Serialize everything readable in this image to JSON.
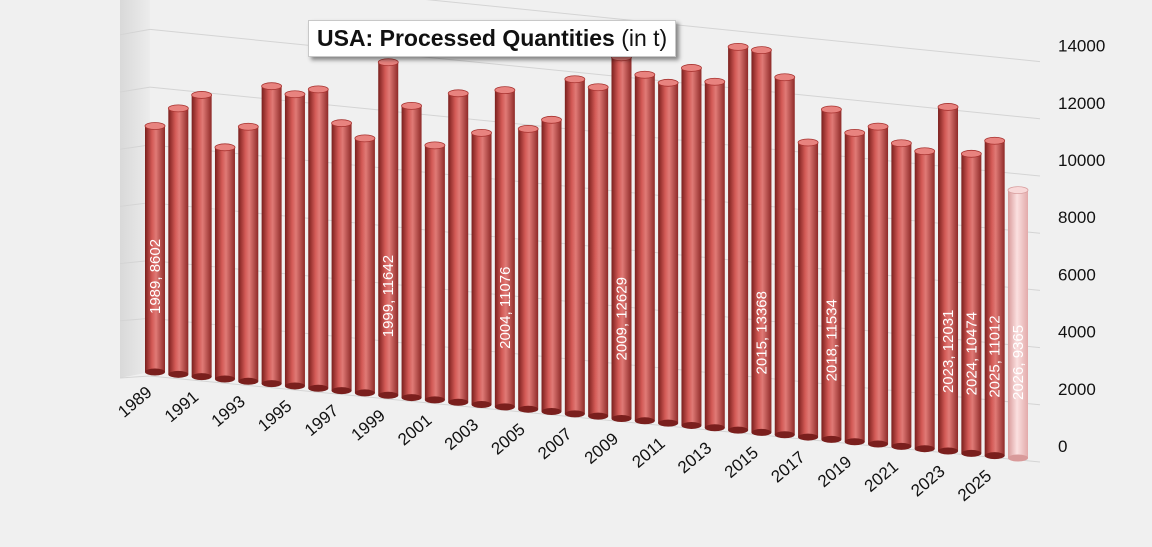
{
  "chart_data": {
    "type": "bar",
    "title_main": "USA: Processed Quantities",
    "title_unit": "(in t)",
    "xlabel": "",
    "ylabel": "",
    "ylim": [
      0,
      14000
    ],
    "y_ticks": [
      0,
      2000,
      4000,
      6000,
      8000,
      10000,
      12000,
      14000
    ],
    "x_tick_labels": [
      "1989",
      "1991",
      "1993",
      "1995",
      "1997",
      "1999",
      "2001",
      "2003",
      "2005",
      "2007",
      "2009",
      "2011",
      "2013",
      "2015",
      "2017",
      "2019",
      "2021",
      "2023",
      "2025"
    ],
    "categories": [
      "1989",
      "1990",
      "1991",
      "1992",
      "1993",
      "1994",
      "1995",
      "1996",
      "1997",
      "1998",
      "1999",
      "2000",
      "2001",
      "2002",
      "2003",
      "2004",
      "2005",
      "2006",
      "2007",
      "2008",
      "2009",
      "2010",
      "2011",
      "2012",
      "2013",
      "2014",
      "2015",
      "2016",
      "2017",
      "2018",
      "2019",
      "2020",
      "2021",
      "2022",
      "2023",
      "2024",
      "2025",
      "2026"
    ],
    "values": [
      8602,
      9300,
      9850,
      8100,
      8900,
      10400,
      10200,
      10450,
      9350,
      8900,
      11642,
      10200,
      8900,
      10800,
      9500,
      11076,
      9800,
      10200,
      11700,
      11500,
      12629,
      12100,
      11900,
      12500,
      12100,
      13400,
      13368,
      12500,
      10300,
      11534,
      10800,
      11100,
      10600,
      10400,
      12031,
      10474,
      11012,
      9365
    ],
    "data_labels": [
      {
        "year": "1989",
        "text": "1989, 8602"
      },
      {
        "year": "1999",
        "text": "1999, 11642"
      },
      {
        "year": "2004",
        "text": "2004, 11076"
      },
      {
        "year": "2009",
        "text": "2009, 12629"
      },
      {
        "year": "2015",
        "text": "2015, 13368"
      },
      {
        "year": "2018",
        "text": "2018, 11534"
      },
      {
        "year": "2023",
        "text": "2023, 12031"
      },
      {
        "year": "2024",
        "text": "2024, 10474"
      },
      {
        "year": "2025",
        "text": "2025, 11012"
      },
      {
        "year": "2026",
        "text": "2026, 9365"
      }
    ],
    "forecast_year": "2026",
    "colors": {
      "bar": "#c0423f",
      "bar_dark": "#7a1f1d",
      "bar_light": "#e8837f",
      "forecast_bar": "#f4c6c6",
      "forecast_dark": "#d99a9a",
      "grid": "#d4d4d4",
      "wall": "#e2e2e2",
      "axis_text": "#111111",
      "label_text": "#ffffff"
    }
  }
}
